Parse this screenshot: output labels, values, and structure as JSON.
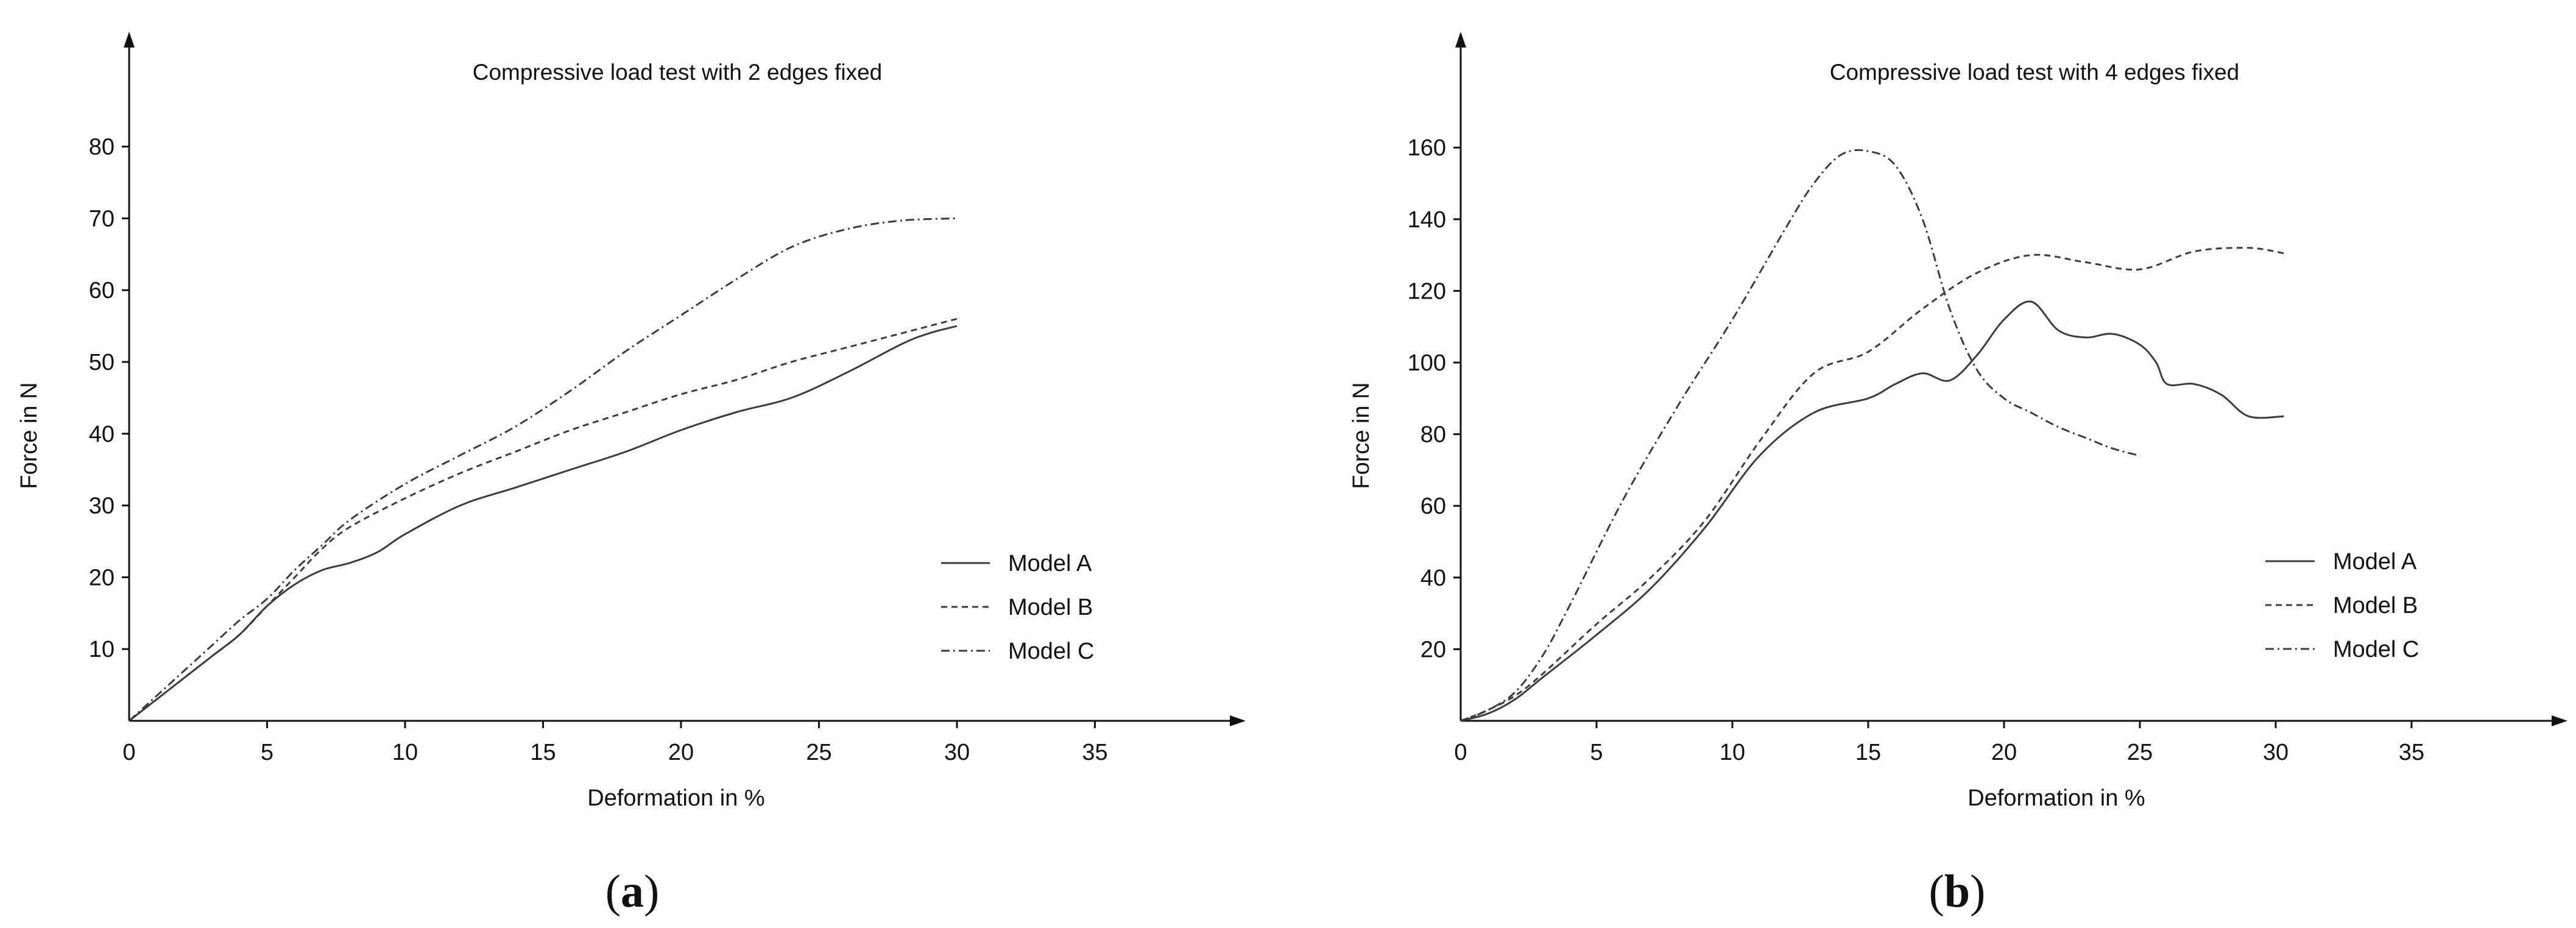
{
  "chart_data": [
    {
      "type": "line",
      "panel": "a",
      "title": "Compressive load test with 2 edges fixed",
      "xlabel": "Deformation in %",
      "ylabel": "Force in N",
      "xlim": [
        0,
        40
      ],
      "ylim": [
        0,
        90
      ],
      "xticks": [
        0,
        5,
        10,
        15,
        20,
        25,
        30,
        35
      ],
      "yticks": [
        10,
        20,
        30,
        40,
        50,
        60,
        70,
        80
      ],
      "grid": false,
      "legend_position": "bottom-right",
      "series": [
        {
          "name": "Model A",
          "dash": "solid",
          "x": [
            0,
            1,
            2,
            3,
            4,
            5,
            6,
            7,
            8,
            9,
            10,
            12,
            14,
            16,
            18,
            20,
            22,
            24,
            26,
            28,
            29,
            30
          ],
          "y": [
            0,
            3,
            6,
            9,
            12,
            16,
            19,
            21,
            22,
            23.5,
            26,
            30,
            32.5,
            35,
            37.5,
            40.5,
            43,
            45,
            48.5,
            52.5,
            54,
            55
          ]
        },
        {
          "name": "Model B",
          "dash": "dashed",
          "x": [
            0,
            1,
            2,
            3,
            4,
            5,
            6,
            7,
            8,
            10,
            12,
            14,
            16,
            18,
            20,
            22,
            24,
            26,
            28,
            30
          ],
          "y": [
            0,
            3,
            6,
            9,
            12,
            16,
            20,
            24,
            27,
            31,
            34.5,
            37.5,
            40.5,
            43,
            45.5,
            47.5,
            50,
            52,
            54,
            56
          ]
        },
        {
          "name": "Model C",
          "dash": "dashdot",
          "x": [
            0,
            1,
            2,
            3,
            4,
            5,
            6,
            7,
            8,
            10,
            12,
            14,
            16,
            18,
            20,
            22,
            24,
            26,
            28,
            30
          ],
          "y": [
            0,
            3.5,
            7,
            10.5,
            14,
            17,
            21,
            24.5,
            28,
            33,
            37,
            41,
            46,
            51.5,
            56.5,
            61.5,
            66,
            68.5,
            69.7,
            70
          ]
        }
      ],
      "panel_label": "(a)"
    },
    {
      "type": "line",
      "panel": "b",
      "title": "Compressive load test with 4 edges fixed",
      "xlabel": "Deformation in %",
      "ylabel": "Force in N",
      "xlim": [
        0,
        41
      ],
      "ylim": [
        0,
        180
      ],
      "xticks": [
        0,
        5,
        10,
        15,
        20,
        25,
        30,
        35
      ],
      "yticks": [
        20,
        40,
        60,
        80,
        100,
        120,
        140,
        160
      ],
      "grid": false,
      "legend_position": "bottom-right",
      "series": [
        {
          "name": "Model A",
          "dash": "solid",
          "x": [
            0,
            1,
            2,
            3,
            5,
            7,
            9,
            11,
            13,
            15,
            16,
            17,
            18,
            19,
            20,
            21,
            22,
            23,
            24,
            25,
            25.6,
            26,
            27,
            28,
            29,
            30.3
          ],
          "y": [
            0,
            2,
            6,
            12,
            24,
            37,
            54,
            74,
            86,
            90,
            94,
            97,
            95,
            102,
            112,
            117,
            109,
            107,
            108,
            105,
            100,
            94,
            94,
            91,
            85,
            85
          ]
        },
        {
          "name": "Model B",
          "dash": "dashed",
          "x": [
            0,
            1,
            2,
            3,
            5,
            7,
            9,
            11,
            13,
            15,
            17,
            19,
            21,
            23,
            25,
            27,
            29,
            30.3
          ],
          "y": [
            0,
            3,
            7,
            13,
            27,
            40,
            56,
            78,
            97,
            103,
            115,
            125,
            130,
            128,
            126,
            131,
            132,
            130.5
          ]
        },
        {
          "name": "Model C",
          "dash": "dashdot",
          "x": [
            0,
            1,
            2,
            3,
            4,
            6,
            8,
            10,
            12,
            13,
            14,
            15,
            16,
            17,
            18,
            19,
            20,
            21,
            22,
            23,
            24,
            25
          ],
          "y": [
            0,
            3,
            8,
            18,
            32,
            62,
            88,
            112,
            138,
            150,
            158,
            159,
            155,
            140,
            115,
            98,
            90,
            86,
            82,
            79,
            76,
            74
          ]
        }
      ],
      "panel_label": "(b)"
    }
  ]
}
